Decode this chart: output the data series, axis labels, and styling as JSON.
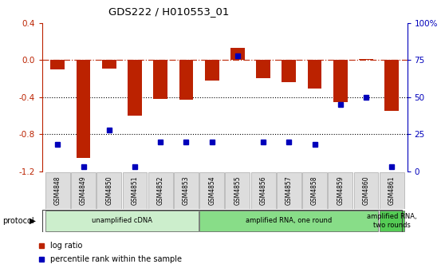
{
  "title": "GDS222 / H010553_01",
  "samples": [
    "GSM4848",
    "GSM4849",
    "GSM4850",
    "GSM4851",
    "GSM4852",
    "GSM4853",
    "GSM4854",
    "GSM4855",
    "GSM4856",
    "GSM4857",
    "GSM4858",
    "GSM4859",
    "GSM4860",
    "GSM4861"
  ],
  "log_ratio": [
    -0.1,
    -1.05,
    -0.09,
    -0.6,
    -0.42,
    -0.43,
    -0.22,
    0.13,
    -0.2,
    -0.24,
    -0.31,
    -0.45,
    0.01,
    -0.55
  ],
  "percentile": [
    18,
    3,
    28,
    3,
    20,
    20,
    20,
    78,
    20,
    20,
    18,
    45,
    50,
    3
  ],
  "bar_color": "#bb2200",
  "dot_color": "#0000bb",
  "ylim_left": [
    -1.2,
    0.4
  ],
  "ylim_right": [
    0,
    100
  ],
  "right_ticks": [
    0,
    25,
    50,
    75,
    100
  ],
  "right_tick_labels": [
    "0",
    "25",
    "50",
    "75",
    "100%"
  ],
  "left_ticks": [
    -1.2,
    -0.8,
    -0.4,
    0.0,
    0.4
  ],
  "hline_y": 0.0,
  "dotted_lines": [
    -0.4,
    -0.8
  ],
  "proto_ranges": [
    [
      0,
      5
    ],
    [
      6,
      12
    ],
    [
      13,
      13
    ]
  ],
  "proto_labels": [
    "unamplified cDNA",
    "amplified RNA, one round",
    "amplified RNA,\ntwo rounds"
  ],
  "proto_colors": [
    "#cceecc",
    "#88dd88",
    "#55cc55"
  ],
  "legend_items": [
    {
      "label": "log ratio",
      "color": "#bb2200"
    },
    {
      "label": "percentile rank within the sample",
      "color": "#0000bb"
    }
  ],
  "protocol_label": "protocol"
}
